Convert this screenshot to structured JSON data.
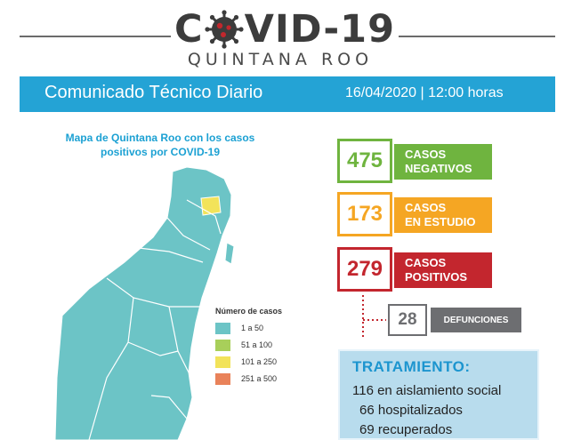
{
  "header": {
    "title_left": "C",
    "title_right": "VID-19",
    "subtitle": "QUINTANA ROO"
  },
  "banner": {
    "title": "Comunicado Técnico Diario",
    "date_time": "16/04/2020 | 12:00 horas"
  },
  "map": {
    "caption_line1": "Mapa de Quintana Roo con los casos",
    "caption_line2": "positivos por COVID-19"
  },
  "legend": {
    "title": "Número de casos",
    "items": [
      {
        "label": "1 a 50",
        "color": "#6cc4c6"
      },
      {
        "label": "51 a 100",
        "color": "#a8cf5a"
      },
      {
        "label": "101 a 250",
        "color": "#f2e35a"
      },
      {
        "label": "251 a 500",
        "color": "#e9825a"
      }
    ]
  },
  "stats": [
    {
      "value": "475",
      "label_line1": "CASOS",
      "label_line2": "NEGATIVOS",
      "color": "#6fb43f"
    },
    {
      "value": "173",
      "label_line1": "CASOS",
      "label_line2": "EN ESTUDIO",
      "color": "#f5a623"
    },
    {
      "value": "279",
      "label_line1": "CASOS",
      "label_line2": "POSITIVOS",
      "color": "#c3262e"
    }
  ],
  "deaths": {
    "value": "28",
    "label": "DEFUNCIONES",
    "color": "#6d6e71"
  },
  "treatment": {
    "title": "TRATAMIENTO:",
    "lines": [
      "116  en aislamiento social",
      "66 hospitalizados",
      "69  recuperados"
    ]
  }
}
